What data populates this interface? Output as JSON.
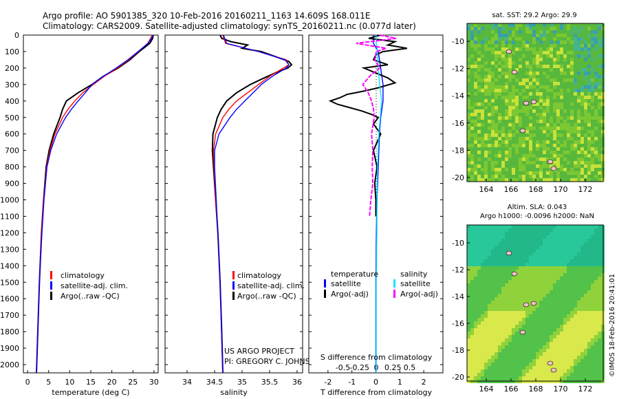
{
  "header": {
    "line1": "Argo profile: AO 5901385_320 10-Feb-2016 20160211_1163 14.609S 168.011E",
    "line2": "Climatology: CARS2009. Satellite-adjusted climatology: synTS_20160211.nc (0.077d later)"
  },
  "colors": {
    "climatology": "#ff0000",
    "satellite": "#0000ff",
    "argo": "#000000",
    "salinity_sat": "#00e5ff",
    "salinity_argo": "#ff00ff"
  },
  "depth_axis": {
    "ticks": [
      "0",
      "100",
      "200",
      "300",
      "400",
      "500",
      "600",
      "700",
      "800",
      "900",
      "1000",
      "1100",
      "1200",
      "1300",
      "1400",
      "1500",
      "1600",
      "1700",
      "1800",
      "1900",
      "2000"
    ]
  },
  "chart_data": [
    {
      "type": "line",
      "xlabel": "temperature (deg C)",
      "ylim": [
        0,
        2060
      ],
      "xlim": [
        -1,
        31
      ],
      "xticks": [
        "0",
        "5",
        "10",
        "15",
        "20",
        "25",
        "30"
      ],
      "legend": [
        "climatology",
        "satellite-adj. clim.",
        "Argo(..raw -QC)"
      ],
      "series": [
        {
          "name": "Argo",
          "depth": [
            0,
            20,
            50,
            80,
            100,
            150,
            200,
            250,
            300,
            350,
            400,
            450,
            500,
            600,
            700,
            800,
            1000,
            1200,
            1500,
            2050
          ],
          "values": [
            29.8,
            29.7,
            29.0,
            27.5,
            26.5,
            24.3,
            21.5,
            18.0,
            15.3,
            12.0,
            9.2,
            8.3,
            7.7,
            6.2,
            5.1,
            4.4,
            3.8,
            3.3,
            2.8,
            2.1
          ]
        },
        {
          "name": "climatology",
          "depth": [
            0,
            20,
            50,
            100,
            150,
            200,
            250,
            300,
            350,
            400,
            450,
            500,
            600,
            700,
            800,
            1000,
            1200,
            1500,
            2050
          ],
          "values": [
            29.6,
            29.2,
            28.5,
            26.3,
            24.0,
            21.3,
            18.2,
            15.6,
            13.1,
            11.2,
            9.6,
            8.3,
            6.5,
            5.3,
            4.5,
            3.8,
            3.3,
            2.8,
            2.1
          ]
        },
        {
          "name": "satellite",
          "depth": [
            0,
            20,
            50,
            100,
            150,
            200,
            250,
            300,
            350,
            400,
            450,
            500,
            600,
            700,
            800,
            1000,
            1200,
            1500,
            2050
          ],
          "values": [
            29.8,
            29.4,
            28.6,
            26.2,
            23.8,
            21.0,
            18.0,
            15.3,
            13.7,
            12.0,
            10.4,
            9.0,
            6.9,
            5.5,
            4.6,
            3.9,
            3.4,
            2.8,
            2.1
          ]
        }
      ]
    },
    {
      "type": "line",
      "xlabel": "salinity",
      "ylim": [
        0,
        2060
      ],
      "xlim": [
        33.6,
        36.1
      ],
      "xticks": [
        "34",
        "34.5",
        "35",
        "35.5",
        "36"
      ],
      "legend": [
        "climatology",
        "satellite-adj. clim.",
        "Argo(..raw -QC)"
      ],
      "series": [
        {
          "name": "Argo",
          "depth": [
            0,
            20,
            40,
            60,
            80,
            100,
            130,
            160,
            180,
            200,
            230,
            260,
            300,
            350,
            400,
            450,
            500,
            600,
            700,
            800,
            900,
            1000,
            1200,
            1500,
            1800,
            2050
          ],
          "values": [
            34.6,
            34.63,
            34.8,
            35.1,
            35.0,
            35.35,
            35.6,
            35.85,
            35.9,
            35.83,
            35.6,
            35.4,
            35.15,
            34.9,
            34.72,
            34.62,
            34.55,
            34.47,
            34.46,
            34.48,
            34.5,
            34.52,
            34.56,
            34.6,
            34.63,
            34.65
          ]
        },
        {
          "name": "climatology",
          "depth": [
            0,
            50,
            100,
            150,
            180,
            200,
            250,
            300,
            350,
            400,
            450,
            500,
            600,
            700,
            800,
            1000,
            1200,
            1500,
            2050
          ],
          "values": [
            34.65,
            34.7,
            35.3,
            35.8,
            35.85,
            35.75,
            35.5,
            35.3,
            35.1,
            34.9,
            34.76,
            34.65,
            34.52,
            34.48,
            34.49,
            34.52,
            34.56,
            34.6,
            34.65
          ]
        },
        {
          "name": "satellite",
          "depth": [
            0,
            50,
            100,
            150,
            180,
            200,
            250,
            300,
            350,
            400,
            450,
            500,
            600,
            700,
            800,
            1000,
            1200,
            1500,
            2050
          ],
          "values": [
            34.66,
            34.72,
            35.3,
            35.78,
            35.85,
            35.8,
            35.55,
            35.35,
            35.2,
            35.05,
            34.9,
            34.78,
            34.58,
            34.5,
            34.5,
            34.53,
            34.56,
            34.6,
            34.65
          ]
        }
      ]
    },
    {
      "type": "line",
      "xlabel": "T difference from climatology",
      "x2label": "S difference from climatology",
      "ylim": [
        0,
        2060
      ],
      "xlim": [
        -2.8,
        2.8
      ],
      "xticks": [
        "-2",
        "-1",
        "0",
        "1",
        "2"
      ],
      "x2ticks": [
        "-0.5",
        "-0.25",
        "0",
        "0.25",
        "0.5"
      ],
      "legend": {
        "temperature": "temperature",
        "salinity": "salinity",
        "items": [
          "satellite",
          "Argo(-adj)",
          "satellite",
          "Argo(-adj)"
        ]
      },
      "series": [
        {
          "name": "T satellite",
          "depth": [
            0,
            50,
            100,
            200,
            300,
            400,
            500,
            600,
            800,
            1000,
            1200,
            1500,
            2050
          ],
          "values": [
            -0.1,
            -0.1,
            0.1,
            0.2,
            0.3,
            0.3,
            0.2,
            0.15,
            0.1,
            0.05,
            0.02,
            0.0,
            0.0
          ]
        },
        {
          "name": "T Argo(-adj)",
          "depth": [
            0,
            20,
            40,
            60,
            80,
            100,
            120,
            150,
            180,
            200,
            230,
            260,
            290,
            320,
            340,
            360,
            380,
            400,
            420,
            440,
            460,
            480,
            500,
            540,
            600,
            700,
            800,
            900,
            1000,
            1100
          ],
          "values": [
            0.2,
            -0.3,
            0.8,
            0.5,
            1.3,
            0.3,
            0.0,
            -0.1,
            0.5,
            -0.5,
            0.0,
            0.5,
            0.8,
            0.1,
            -0.5,
            -1.2,
            -1.5,
            -1.9,
            -1.6,
            -1.1,
            -0.6,
            -0.2,
            0.1,
            -0.1,
            0.2,
            -0.1,
            0.05,
            -0.05,
            0.0,
            0.0
          ]
        },
        {
          "name": "S satellite",
          "depth": [
            0,
            50,
            100,
            200,
            300,
            400,
            500,
            600,
            800,
            1000,
            1200,
            1500,
            2050
          ],
          "values": [
            0.0,
            0.0,
            0.02,
            0.03,
            0.05,
            0.08,
            0.06,
            0.04,
            0.02,
            0.01,
            0.01,
            0.0,
            0.0
          ]
        },
        {
          "name": "S Argo(-adj)",
          "depth": [
            0,
            20,
            50,
            80,
            100,
            150,
            200,
            250,
            300,
            350,
            400,
            450,
            500,
            600,
            700,
            800,
            900,
            1000,
            1100
          ],
          "values": [
            0.05,
            0.3,
            -0.3,
            0.15,
            0.0,
            -0.02,
            0.05,
            -0.1,
            -0.2,
            -0.12,
            -0.07,
            -0.04,
            -0.03,
            -0.07,
            -0.05,
            -0.06,
            -0.05,
            -0.08,
            -0.1
          ]
        }
      ]
    }
  ],
  "sst_map": {
    "title": "sat. SST: 29.2 Argo: 29.9",
    "xticks": [
      "164",
      "166",
      "168",
      "170",
      "172"
    ],
    "yticks": [
      "-10",
      "-12",
      "-14",
      "-16",
      "-18",
      "-20"
    ]
  },
  "sla_map": {
    "title1": "Altim. SLA: 0.043",
    "title2": "Argo h1000: -0.0096 h2000: NaN",
    "xticks": [
      "164",
      "166",
      "168",
      "170",
      "172"
    ],
    "yticks": [
      "-10",
      "-12",
      "-14",
      "-16",
      "-18",
      "-20"
    ]
  },
  "credit": {
    "project": "US ARGO PROJECT",
    "pi": "PI: GREGORY C. JOHNSON",
    "stamp": "©IMOS 18-Feb-2016 20:41:01"
  }
}
